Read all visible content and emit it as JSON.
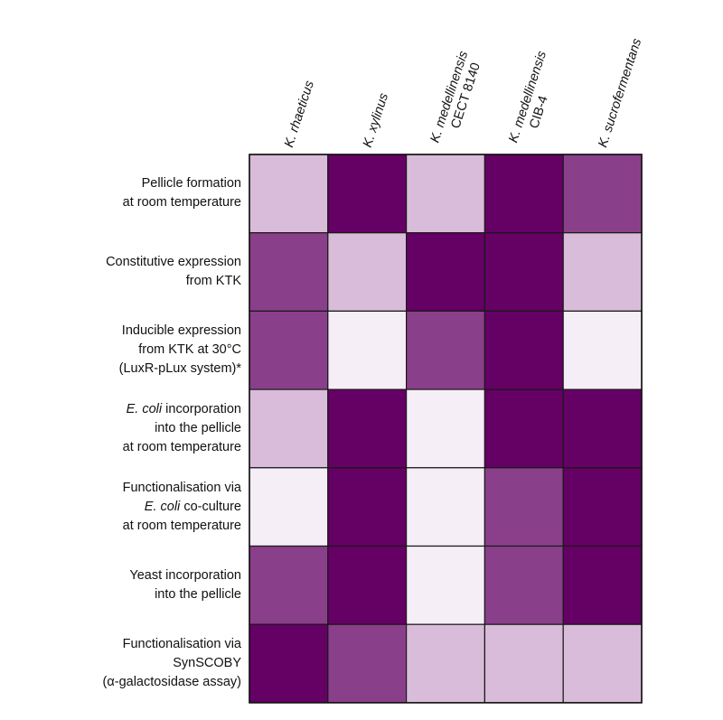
{
  "chart_data": {
    "type": "heatmap",
    "title": "",
    "color_scale": [
      "#f6eef6",
      "#d9bcd9",
      "#8a3f8a",
      "#650065"
    ],
    "columns": [
      {
        "lines": [
          "K. rhaeticus"
        ]
      },
      {
        "lines": [
          "K. xylinus"
        ]
      },
      {
        "lines": [
          "K. medellinensis",
          "CECT 8140"
        ]
      },
      {
        "lines": [
          "K. medellinensis",
          "CIB-4"
        ]
      },
      {
        "lines": [
          "K. sucrofermentans"
        ]
      }
    ],
    "rows": [
      {
        "lines": [
          {
            "text": "Pellicle formation"
          },
          {
            "text": "at room temperature"
          }
        ]
      },
      {
        "lines": [
          {
            "text": "Constitutive expression"
          },
          {
            "text": "from KTK"
          }
        ]
      },
      {
        "lines": [
          {
            "text": "Inducible expression"
          },
          {
            "text": "from KTK at 30°C"
          },
          {
            "text": "(LuxR-pLux system)*"
          }
        ]
      },
      {
        "lines": [
          {
            "italic": "E. coli",
            "text": " incorporation"
          },
          {
            "text": "into the pellicle"
          },
          {
            "text": "at room temperature"
          }
        ]
      },
      {
        "lines": [
          {
            "text": "Functionalisation via"
          },
          {
            "italic": "E. coli",
            "text": " co-culture"
          },
          {
            "text": "at room temperature"
          }
        ]
      },
      {
        "lines": [
          {
            "text": "Yeast incorporation"
          },
          {
            "text": "into the pellicle"
          }
        ]
      },
      {
        "lines": [
          {
            "text": "Functionalisation via"
          },
          {
            "text": "SynSCOBY"
          },
          {
            "text": "(α-galactosidase assay)"
          }
        ]
      }
    ],
    "values": [
      [
        1,
        3,
        1,
        3,
        2
      ],
      [
        2,
        1,
        3,
        3,
        1
      ],
      [
        2,
        0,
        2,
        3,
        0
      ],
      [
        1,
        3,
        0,
        3,
        3
      ],
      [
        0,
        3,
        0,
        2,
        3
      ],
      [
        2,
        3,
        0,
        2,
        3
      ],
      [
        3,
        2,
        1,
        1,
        1
      ]
    ]
  }
}
